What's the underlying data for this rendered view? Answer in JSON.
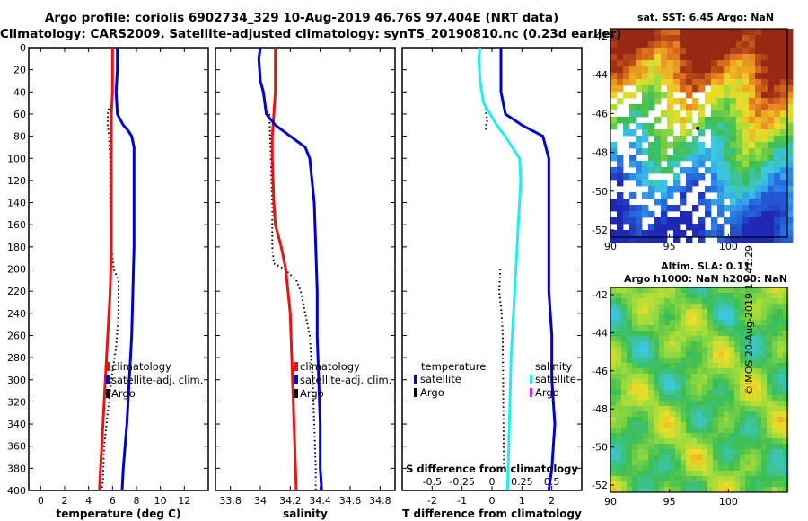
{
  "header": {
    "line1": "Argo profile: coriolis 6902734_329 10-Aug-2019 46.76S 97.404E (NRT data)",
    "line2": "Climatology: CARS2009. Satellite-adjusted climatology: synTS_20190810.nc (0.23d earlier)"
  },
  "maps": {
    "sst_title": "sat. SST: 6.45 Argo: NaN",
    "sla_title_1": "Altim. SLA: 0.11",
    "sla_title_2": "Argo h1000: NaN h2000: NaN",
    "credit": "©IMOS 20-Aug-2019 11:41:29",
    "lon_ticks": [
      "90",
      "95",
      "100"
    ],
    "lat_ticks": [
      "-42",
      "-44",
      "-46",
      "-48",
      "-50",
      "-52"
    ]
  },
  "colors": {
    "climatology": "#ee1111",
    "satellite": "#0000cc",
    "argo": "#000000",
    "salinity_sat": "#22eeee",
    "salinity_argo": "#ee22ee"
  },
  "chart_data": [
    {
      "type": "line",
      "id": "temperature",
      "xlabel": "temperature (deg C)",
      "ylabel": "",
      "xlim": [
        -1,
        14
      ],
      "ylim": [
        400,
        0
      ],
      "xticks": [
        0,
        2,
        4,
        6,
        8,
        10,
        12
      ],
      "yticks": [
        0,
        20,
        40,
        60,
        80,
        100,
        120,
        140,
        160,
        180,
        200,
        220,
        240,
        260,
        280,
        300,
        320,
        340,
        360,
        380,
        400
      ],
      "legend": [
        "climatology",
        "satellite-adj. clim.",
        "Argo"
      ],
      "series": [
        {
          "name": "climatology",
          "depth": [
            0,
            20,
            40,
            60,
            80,
            100,
            140,
            180,
            220,
            260,
            300,
            340,
            380,
            400
          ],
          "values": [
            6.0,
            6.0,
            6.0,
            5.9,
            5.9,
            5.9,
            5.9,
            5.9,
            5.8,
            5.6,
            5.4,
            5.2,
            5.0,
            4.9
          ]
        },
        {
          "name": "satellite-adj. clim.",
          "depth": [
            0,
            20,
            40,
            60,
            70,
            75,
            80,
            90,
            100,
            140,
            180,
            220,
            260,
            300,
            340,
            380,
            400
          ],
          "values": [
            6.4,
            6.4,
            6.3,
            6.4,
            6.9,
            7.3,
            7.6,
            7.8,
            7.8,
            7.8,
            7.8,
            7.7,
            7.6,
            7.4,
            7.2,
            6.9,
            6.8
          ]
        },
        {
          "name": "Argo",
          "depth": [
            55,
            60,
            70,
            80,
            100,
            140,
            180,
            200,
            210,
            240,
            270,
            300,
            330,
            360,
            390,
            400
          ],
          "values": [
            5.7,
            5.6,
            5.6,
            5.7,
            5.8,
            5.8,
            5.9,
            6.1,
            6.5,
            6.5,
            6.3,
            5.9,
            5.6,
            5.3,
            5.2,
            5.1
          ]
        }
      ]
    },
    {
      "type": "line",
      "id": "salinity",
      "xlabel": "salinity",
      "ylabel": "",
      "xlim": [
        33.7,
        34.9
      ],
      "ylim": [
        400,
        0
      ],
      "xticks": [
        33.8,
        34.0,
        34.2,
        34.4,
        34.6,
        34.8
      ],
      "xticklabels": [
        "33.8",
        "34",
        "34.2",
        "34.4",
        "34.6",
        "34.8"
      ],
      "legend": [
        "climatology",
        "satellite-adj. clim.",
        "Argo"
      ],
      "series": [
        {
          "name": "climatology",
          "depth": [
            0,
            40,
            60,
            80,
            100,
            140,
            160,
            180,
            200,
            240,
            280,
            320,
            360,
            400
          ],
          "values": [
            34.1,
            34.1,
            34.09,
            34.08,
            34.08,
            34.09,
            34.1,
            34.14,
            34.17,
            34.2,
            34.21,
            34.22,
            34.23,
            34.24
          ]
        },
        {
          "name": "satellite-adj. clim.",
          "depth": [
            0,
            10,
            30,
            40,
            60,
            70,
            80,
            90,
            100,
            140,
            180,
            220,
            260,
            300,
            340,
            380,
            400
          ],
          "values": [
            34.0,
            33.99,
            34.0,
            34.02,
            34.04,
            34.1,
            34.2,
            34.3,
            34.33,
            34.36,
            34.37,
            34.38,
            34.38,
            34.39,
            34.4,
            34.4,
            34.41
          ]
        },
        {
          "name": "Argo",
          "depth": [
            60,
            100,
            140,
            180,
            195,
            200,
            210,
            220,
            240,
            260,
            300,
            340,
            380,
            400
          ],
          "values": [
            34.06,
            34.07,
            34.08,
            34.08,
            34.09,
            34.16,
            34.24,
            34.27,
            34.3,
            34.33,
            34.35,
            34.36,
            34.37,
            34.37
          ]
        }
      ]
    },
    {
      "type": "line",
      "id": "differences",
      "xlabel": "T difference from climatology",
      "x2label": "S difference from climatology",
      "xlim": [
        -3,
        3
      ],
      "x2lim": [
        -0.75,
        0.75
      ],
      "ylim": [
        400,
        0
      ],
      "xticks": [
        -2,
        -1,
        0,
        1,
        2
      ],
      "x2ticks": [
        -0.5,
        -0.25,
        0,
        0.25,
        0.5
      ],
      "x2ticklabels": [
        "-0.5",
        "-0.25",
        "0",
        "0.25",
        "0.5"
      ],
      "legend_left_title": "temperature",
      "legend_right_title": "salinity",
      "legend": [
        "satellite",
        "Argo"
      ],
      "series": [
        {
          "name": "temperature satellite",
          "depth": [
            0,
            40,
            60,
            70,
            80,
            100,
            140,
            180,
            220,
            260,
            300,
            340,
            380,
            400
          ],
          "values": [
            0.3,
            0.3,
            0.45,
            1.0,
            1.7,
            1.9,
            1.9,
            1.9,
            1.9,
            2.0,
            2.0,
            2.1,
            2.0,
            1.9
          ]
        },
        {
          "name": "salinity satellite",
          "depth": [
            0,
            10,
            30,
            50,
            70,
            80,
            100,
            120,
            160,
            200,
            240,
            280,
            320,
            360,
            400
          ],
          "values": [
            -0.1,
            -0.11,
            -0.1,
            -0.07,
            0.04,
            0.11,
            0.23,
            0.24,
            0.22,
            0.2,
            0.18,
            0.16,
            0.15,
            0.14,
            0.13
          ]
        },
        {
          "name": "Argo T",
          "depth": [
            55,
            60,
            65,
            70,
            75
          ],
          "values": [
            -0.2,
            -0.2,
            -0.15,
            -0.2,
            -0.2
          ]
        },
        {
          "name": "Argo S",
          "depth": [
            200,
            220,
            240,
            260,
            270,
            380
          ],
          "values": [
            0.07,
            0.06,
            0.08,
            0.09,
            0.09,
            0.1
          ]
        }
      ]
    }
  ]
}
